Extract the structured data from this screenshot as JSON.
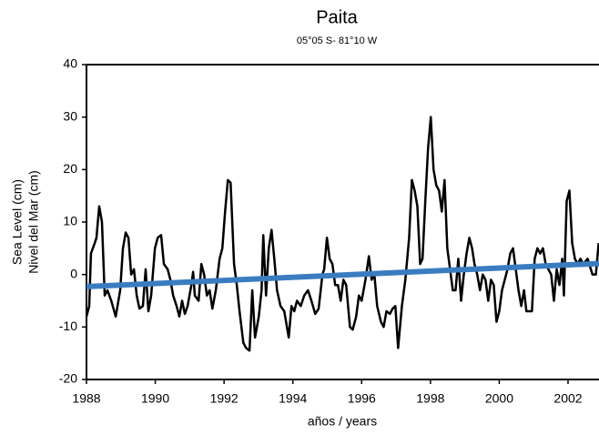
{
  "chart_data": {
    "type": "line",
    "title": "Paita",
    "subtitle": "05°05 S- 81°10 W",
    "xlabel": "años / years",
    "ylabel": [
      "Sea Level (cm)",
      "Nivel del Mar (cm)"
    ],
    "xlim": [
      1988,
      2002.9
    ],
    "xticks": [
      1988,
      1990,
      1992,
      1994,
      1996,
      1998,
      2000,
      2002
    ],
    "ylim": [
      -20,
      40
    ],
    "yticks": [
      -20,
      -10,
      0,
      10,
      20,
      30,
      40
    ],
    "series": [
      {
        "color": "#000000",
        "width": 2.5,
        "x": [
          1988.0,
          1988.08,
          1988.13,
          1988.24,
          1988.29,
          1988.37,
          1988.45,
          1988.53,
          1988.61,
          1988.72,
          1988.85,
          1988.98,
          1989.06,
          1989.14,
          1989.22,
          1989.3,
          1989.38,
          1989.46,
          1989.54,
          1989.64,
          1989.72,
          1989.8,
          1989.88,
          1989.99,
          1990.07,
          1990.17,
          1990.25,
          1990.36,
          1990.44,
          1990.52,
          1990.62,
          1990.7,
          1990.78,
          1990.86,
          1990.94,
          1991.05,
          1991.1,
          1991.15,
          1991.26,
          1991.34,
          1991.42,
          1991.5,
          1991.58,
          1991.66,
          1991.76,
          1991.87,
          1991.95,
          1992.03,
          1992.11,
          1992.19,
          1992.29,
          1992.37,
          1992.45,
          1992.56,
          1992.64,
          1992.74,
          1992.82,
          1992.9,
          1993.01,
          1993.09,
          1993.14,
          1993.22,
          1993.3,
          1993.38,
          1993.46,
          1993.54,
          1993.64,
          1993.75,
          1993.88,
          1993.96,
          1994.04,
          1994.12,
          1994.23,
          1994.33,
          1994.44,
          1994.54,
          1994.65,
          1994.75,
          1994.86,
          1994.91,
          1994.99,
          1995.07,
          1995.15,
          1995.23,
          1995.31,
          1995.39,
          1995.47,
          1995.55,
          1995.66,
          1995.74,
          1995.84,
          1995.92,
          1996.0,
          1996.11,
          1996.21,
          1996.29,
          1996.37,
          1996.45,
          1996.56,
          1996.64,
          1996.72,
          1996.82,
          1996.9,
          1996.98,
          1997.06,
          1997.17,
          1997.27,
          1997.38,
          1997.46,
          1997.54,
          1997.62,
          1997.7,
          1997.77,
          1997.85,
          1997.93,
          1998.01,
          1998.09,
          1998.17,
          1998.25,
          1998.33,
          1998.41,
          1998.49,
          1998.57,
          1998.65,
          1998.73,
          1998.81,
          1998.89,
          1998.97,
          1999.05,
          1999.13,
          1999.21,
          1999.28,
          1999.36,
          1999.44,
          1999.52,
          1999.6,
          1999.68,
          1999.76,
          1999.84,
          1999.92,
          2000.0,
          2000.08,
          2000.16,
          2000.24,
          2000.32,
          2000.4,
          2000.48,
          2000.56,
          2000.64,
          2000.72,
          2000.79,
          2000.87,
          2000.95,
          2001.03,
          2001.11,
          2001.19,
          2001.27,
          2001.35,
          2001.43,
          2001.51,
          2001.59,
          2001.67,
          2001.75,
          2001.83,
          2001.88,
          2001.96,
          2002.04,
          2002.12,
          2002.2,
          2002.28,
          2002.36,
          2002.44,
          2002.57,
          2002.71,
          2002.81,
          2002.89
        ],
        "values": [
          -8,
          -6,
          4,
          6,
          7,
          13,
          10,
          -4,
          -3,
          -5,
          -8,
          -3,
          5,
          8,
          7,
          0,
          1,
          -4,
          -6.5,
          -6,
          1,
          -7,
          -4,
          5,
          7,
          7.5,
          2,
          1,
          -1,
          -4,
          -6,
          -8,
          -5,
          -7.5,
          -6,
          -2,
          0.5,
          -4,
          -5,
          2,
          0,
          -4,
          -3,
          -6.5,
          -3,
          3,
          5,
          12,
          18,
          17.5,
          2,
          -2,
          -7,
          -13,
          -14,
          -14.5,
          -3,
          -12,
          -8,
          -3,
          7.5,
          -4,
          5,
          8.5,
          3,
          -3,
          -6,
          -7,
          -12,
          -6,
          -7,
          -5,
          -6,
          -4,
          -3,
          -5,
          -7.5,
          -6.5,
          0,
          1,
          7,
          3,
          2,
          -2,
          -2,
          -5,
          -1,
          -2,
          -10,
          -10.5,
          -8,
          -4,
          -5,
          -1,
          3.5,
          -1,
          0,
          -6,
          -9,
          -10,
          -7,
          -7.5,
          -6.5,
          -6,
          -14,
          -6,
          -1,
          7,
          18,
          16,
          13,
          2,
          3,
          14,
          24,
          30,
          20,
          17,
          16,
          12,
          18,
          5,
          1,
          -3,
          -3,
          3,
          -5,
          0,
          4,
          7,
          5,
          2,
          0,
          -3,
          0,
          -1,
          -5,
          -1,
          -2,
          -9,
          -7,
          -3,
          -1,
          1,
          4,
          5,
          1,
          -3,
          -6,
          -3,
          -7,
          -7,
          -7,
          3,
          5,
          4,
          5,
          2,
          1,
          0,
          -5,
          1,
          -2,
          3,
          -4,
          14,
          16,
          6,
          3,
          2,
          3,
          2,
          3,
          0,
          0,
          6
        ]
      },
      {
        "color": "#3a7cc0",
        "width": 6,
        "x": [
          1988,
          2002.9
        ],
        "values": [
          -2.3,
          2.1
        ]
      }
    ]
  }
}
